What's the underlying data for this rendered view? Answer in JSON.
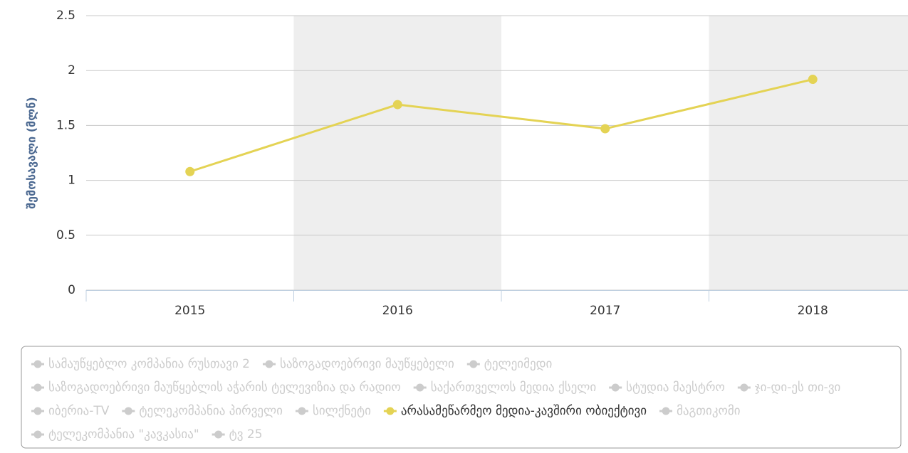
{
  "chart_data": {
    "type": "line",
    "y_axis_label": "შემოსავალი (მლნ)",
    "categories": [
      "2015",
      "2016",
      "2017",
      "2018"
    ],
    "series": [
      {
        "name": "არასამეწარმეო მედია-კავშირი ობიექტივი",
        "color": "#e4d354",
        "values": [
          1.08,
          1.69,
          1.47,
          1.92
        ]
      }
    ],
    "ylim": [
      0,
      2.5
    ],
    "yticks": [
      0,
      0.5,
      1,
      1.5,
      2,
      2.5
    ],
    "grid": true,
    "alternate_bands": true,
    "legend_items": [
      {
        "name": "სამაუწყებლო კომპანია რუსთავი 2",
        "visible": false
      },
      {
        "name": "საზოგადოებრივი მაუწყებელი",
        "visible": false
      },
      {
        "name": "ტელეიმედი",
        "visible": false
      },
      {
        "name": "საზოგადოებრივი მაუწყებლის აჭარის ტელევიზია და რადიო",
        "visible": false
      },
      {
        "name": "საქართველოს მედია ქსელი",
        "visible": false
      },
      {
        "name": "სტუდია მაესტრო",
        "visible": false
      },
      {
        "name": "ჯი-დი-ეს თი-ვი",
        "visible": false
      },
      {
        "name": "იბერია-TV",
        "visible": false
      },
      {
        "name": "ტელეკომპანია პირველი",
        "visible": false
      },
      {
        "name": "სილქნეტი",
        "visible": false
      },
      {
        "name": "არასამეწარმეო მედია-კავშირი ობიექტივი",
        "visible": true
      },
      {
        "name": "მაგთიკომი",
        "visible": false
      },
      {
        "name": "ტელეკომპანია \"კავკასია\"",
        "visible": false
      },
      {
        "name": "ტვ 25",
        "visible": false
      }
    ]
  }
}
